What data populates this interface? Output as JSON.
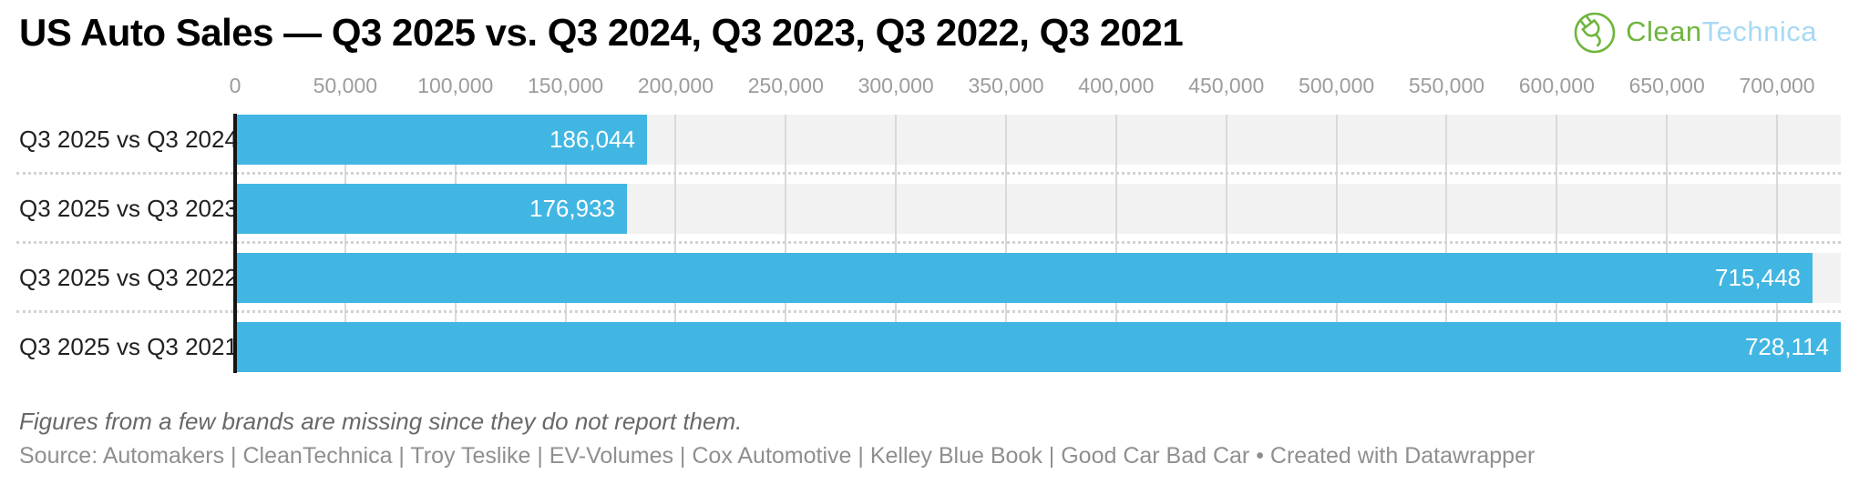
{
  "header": {
    "logo": {
      "part1": "Clean",
      "part2": "Technica",
      "green": "#6fb53e",
      "light_blue": "#a7d9f4",
      "icon": "plug-in-circle-icon"
    }
  },
  "chart_data": {
    "type": "bar",
    "orientation": "horizontal",
    "title": "US Auto Sales — Q3 2025 vs. Q3 2024, Q3 2023, Q3 2022, Q3 2021",
    "categories": [
      "Q3 2025 vs Q3 2024",
      "Q3 2025 vs Q3 2023",
      "Q3 2025 vs Q3 2022",
      "Q3 2025 vs Q3 2021"
    ],
    "values": [
      186044,
      176933,
      715448,
      728114
    ],
    "value_labels": [
      "186,044",
      "176,933",
      "715,448",
      "728,114"
    ],
    "xlabel": "",
    "ylabel": "",
    "xlim": [
      0,
      728114
    ],
    "x_tick_values": [
      0,
      50000,
      100000,
      150000,
      200000,
      250000,
      300000,
      350000,
      400000,
      450000,
      500000,
      550000,
      600000,
      650000,
      700000
    ],
    "x_tick_labels": [
      "0",
      "50,000",
      "100,000",
      "150,000",
      "200,000",
      "250,000",
      "300,000",
      "350,000",
      "400,000",
      "450,000",
      "500,000",
      "550,000",
      "600,000",
      "650,000",
      "700,000"
    ],
    "grid": "vertical gridlines every 50,000",
    "legend": "none",
    "bar_color": "#42b6e2",
    "row_band_color": "#f2f2f2",
    "gridline_color": "#d9d9d9",
    "axis_line_color": "#151515",
    "value_label_color": "#ffffff",
    "tick_label_color": "#9c9c9c"
  },
  "footer": {
    "note": "Figures from a few brands are missing since they do not report them.",
    "source": "Source: Automakers | CleanTechnica | Troy Teslike | EV-Volumes | Cox Automotive | Kelley Blue Book | Good Car Bad Car • Created with Datawrapper"
  }
}
